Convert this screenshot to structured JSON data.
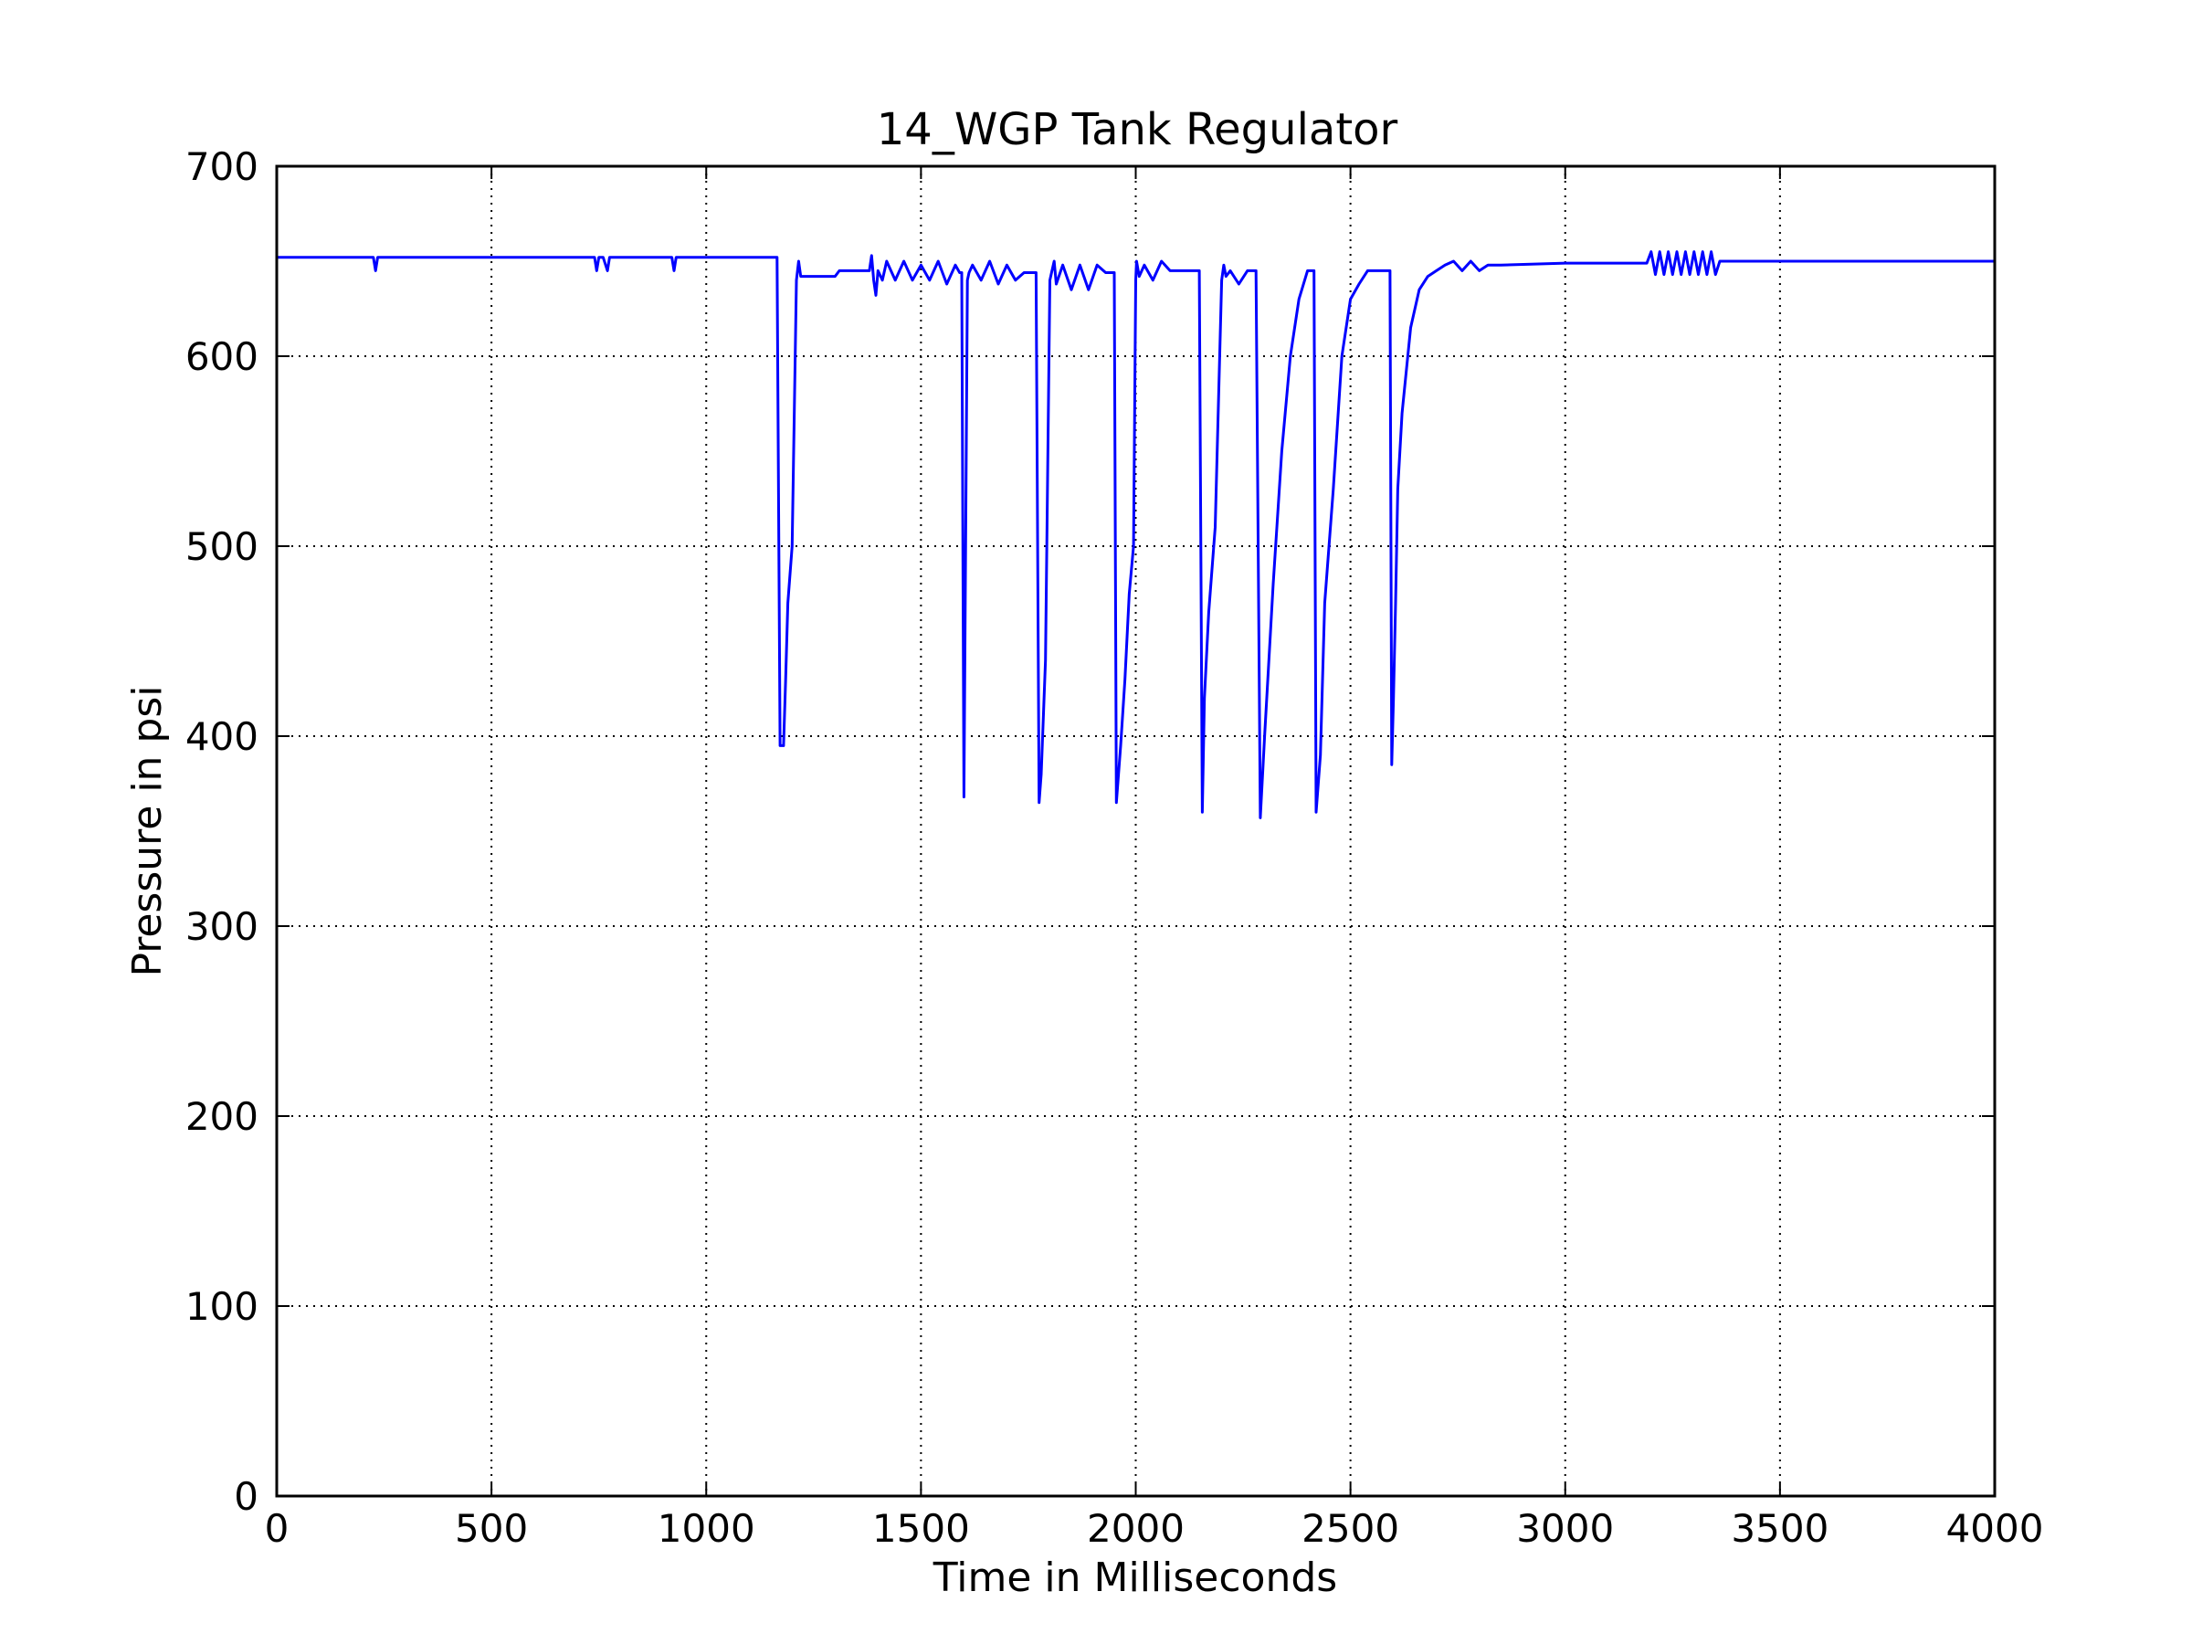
{
  "chart_data": {
    "type": "line",
    "title": "14_WGP Tank Regulator",
    "xlabel": "Time in Milliseconds",
    "ylabel": "Pressure in psi",
    "xlim": [
      0,
      4000
    ],
    "ylim": [
      0,
      700
    ],
    "xticks": [
      "0",
      "500",
      "1000",
      "1500",
      "2000",
      "2500",
      "3000",
      "3500",
      "4000"
    ],
    "yticks": [
      "0",
      "100",
      "200",
      "300",
      "400",
      "500",
      "600",
      "700"
    ],
    "grid": true,
    "line_color": "#0000ff",
    "series": [
      {
        "x": [
          0,
          225,
          230,
          235,
          740,
          745,
          750,
          760,
          770,
          775,
          920,
          925,
          930,
          1165,
          1172,
          1180,
          1185,
          1190,
          1200,
          1210,
          1215,
          1220,
          1230,
          1300,
          1310,
          1380,
          1385,
          1390,
          1395,
          1400,
          1410,
          1420,
          1440,
          1460,
          1480,
          1500,
          1520,
          1540,
          1560,
          1580,
          1590,
          1595,
          1600,
          1608,
          1612,
          1620,
          1640,
          1660,
          1680,
          1700,
          1720,
          1740,
          1760,
          1768,
          1775,
          1780,
          1790,
          1800,
          1805,
          1810,
          1815,
          1830,
          1850,
          1870,
          1890,
          1910,
          1930,
          1945,
          1950,
          1955,
          1965,
          1975,
          1985,
          1995,
          2000,
          2002,
          2008,
          2020,
          2040,
          2060,
          2080,
          2100,
          2120,
          2140,
          2148,
          2155,
          2160,
          2170,
          2185,
          2200,
          2205,
          2210,
          2220,
          2240,
          2260,
          2270,
          2280,
          2290,
          2300,
          2320,
          2340,
          2360,
          2380,
          2400,
          2410,
          2415,
          2420,
          2430,
          2440,
          2460,
          2480,
          2500,
          2520,
          2540,
          2560,
          2580,
          2592,
          2596,
          2600,
          2605,
          2610,
          2620,
          2640,
          2660,
          2680,
          2700,
          2720,
          2740,
          2760,
          2780,
          2800,
          2820,
          2835,
          2850,
          3000,
          3190,
          3200,
          3210,
          3220,
          3230,
          3240,
          3250,
          3260,
          3270,
          3280,
          3290,
          3300,
          3310,
          3320,
          3330,
          3340,
          3350,
          3360,
          3370,
          3500,
          4000
        ],
        "y": [
          652,
          652,
          645,
          652,
          652,
          645,
          652,
          652,
          645,
          652,
          652,
          645,
          652,
          652,
          395,
          395,
          430,
          470,
          500,
          640,
          650,
          642,
          642,
          642,
          645,
          645,
          653,
          640,
          632,
          645,
          640,
          650,
          640,
          650,
          640,
          648,
          640,
          650,
          638,
          648,
          644,
          644,
          368,
          640,
          644,
          648,
          640,
          650,
          638,
          648,
          640,
          644,
          644,
          644,
          365,
          380,
          440,
          640,
          645,
          650,
          638,
          648,
          635,
          648,
          635,
          648,
          644,
          644,
          644,
          365,
          395,
          430,
          475,
          500,
          640,
          650,
          642,
          648,
          640,
          650,
          645,
          645,
          645,
          645,
          645,
          360,
          420,
          465,
          510,
          640,
          648,
          642,
          645,
          638,
          645,
          645,
          645,
          357,
          400,
          480,
          550,
          600,
          630,
          645,
          645,
          645,
          360,
          390,
          470,
          530,
          600,
          630,
          638,
          645,
          645,
          645,
          645,
          385,
          420,
          470,
          530,
          570,
          615,
          635,
          642,
          645,
          648,
          650,
          645,
          650,
          645,
          648,
          648,
          648,
          649,
          649,
          655,
          643,
          655,
          643,
          655,
          643,
          655,
          643,
          655,
          643,
          655,
          643,
          655,
          643,
          655,
          643,
          650,
          650,
          650,
          650
        ]
      }
    ]
  }
}
